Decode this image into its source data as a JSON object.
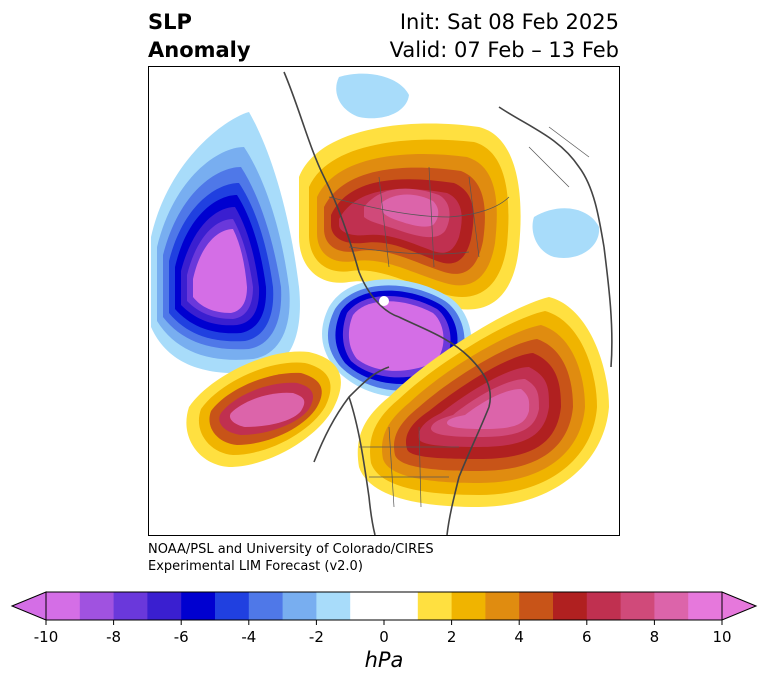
{
  "title": {
    "left_line1": "SLP",
    "left_line2": "Anomaly",
    "init": "Init: Sat 08 Feb 2025",
    "valid": "Valid: 07 Feb – 13 Feb"
  },
  "credit": {
    "line1": "NOAA/PSL and University of Colorado/CIRES",
    "line2": "Experimental LIM Forecast (v2.0)"
  },
  "colorbar": {
    "unit": "hPa",
    "ticks": [
      "-10",
      "-8",
      "-6",
      "-4",
      "-2",
      "0",
      "2",
      "4",
      "6",
      "8",
      "10"
    ],
    "colors": [
      "#d46ee6",
      "#a052e0",
      "#6a38db",
      "#3a1fd0",
      "#0000d0",
      "#2040e0",
      "#4f78e8",
      "#78aef0",
      "#a8dcfa",
      "#ffffff",
      "#ffffff",
      "#ffe040",
      "#f0b400",
      "#e08c10",
      "#c85418",
      "#b02020",
      "#c03050",
      "#d04a7a",
      "#dc64aa",
      "#e678dc"
    ]
  },
  "map": {
    "projection": "north-polar-stereographic",
    "features": [
      {
        "name": "negative-anomaly-north-pacific",
        "sign": "negative",
        "peak_hpa": -10
      },
      {
        "name": "negative-anomaly-arctic-canada",
        "sign": "negative",
        "peak_hpa": -10
      },
      {
        "name": "positive-anomaly-siberia",
        "sign": "positive",
        "peak_hpa": 10
      },
      {
        "name": "positive-anomaly-north-atlantic-europe",
        "sign": "positive",
        "peak_hpa": 10
      },
      {
        "name": "positive-anomaly-subtropical-pacific",
        "sign": "positive",
        "peak_hpa": 10
      }
    ]
  }
}
